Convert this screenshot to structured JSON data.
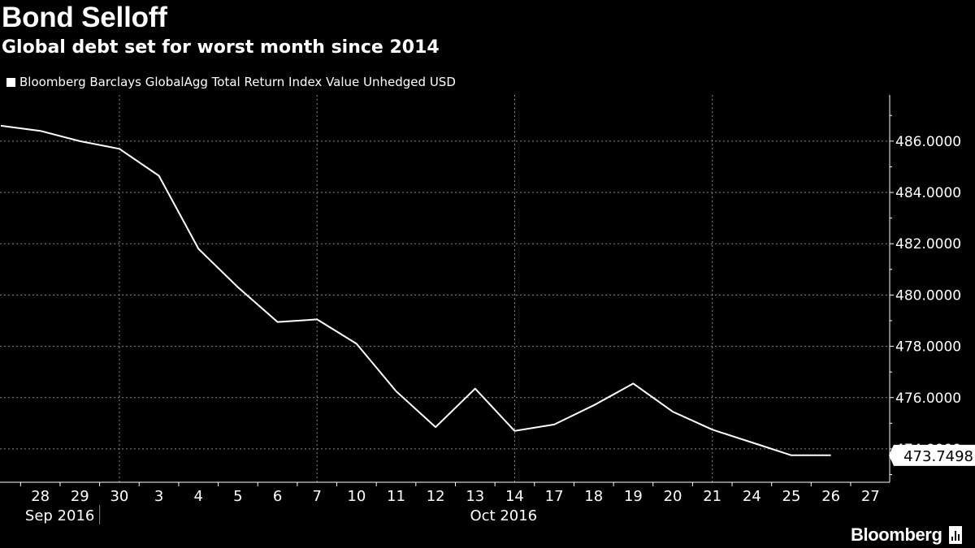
{
  "header": {
    "title": "Bond Selloff",
    "subtitle": "Global debt set for worst month since 2014"
  },
  "legend": {
    "label": "Bloomberg Barclays GlobalAgg Total Return Index Value Unhedged USD"
  },
  "brand": {
    "name": "Bloomberg",
    "icon": "bloomberg-terminal-icon"
  },
  "colors": {
    "background": "#000000",
    "line": "#ffffff",
    "grid": "#888888"
  },
  "chart_data": {
    "type": "line",
    "title": "Bond Selloff",
    "subtitle": "Global debt set for worst month since 2014",
    "xlabel": "",
    "ylabel": "",
    "x_tick_labels": [
      "28",
      "29",
      "30",
      "3",
      "4",
      "5",
      "6",
      "7",
      "10",
      "11",
      "12",
      "13",
      "14",
      "17",
      "18",
      "19",
      "20",
      "21",
      "24",
      "25",
      "26",
      "27"
    ],
    "x_month_labels": [
      "Sep 2016",
      "Oct 2016"
    ],
    "x": [
      "2016-09-27",
      "2016-09-28",
      "2016-09-29",
      "2016-09-30",
      "2016-10-03",
      "2016-10-04",
      "2016-10-05",
      "2016-10-06",
      "2016-10-07",
      "2016-10-10",
      "2016-10-11",
      "2016-10-12",
      "2016-10-13",
      "2016-10-14",
      "2016-10-17",
      "2016-10-18",
      "2016-10-19",
      "2016-10-20",
      "2016-10-21",
      "2016-10-24",
      "2016-10-25",
      "2016-10-26"
    ],
    "series": [
      {
        "name": "Bloomberg Barclays GlobalAgg Total Return Index Value Unhedged USD",
        "values": [
          486.6,
          486.4,
          486.0,
          485.7,
          484.65,
          481.8,
          480.3,
          478.95,
          479.05,
          478.1,
          476.25,
          474.85,
          476.35,
          474.7,
          474.95,
          475.7,
          476.55,
          475.45,
          474.75,
          474.25,
          473.7498,
          473.7498
        ]
      }
    ],
    "y_tick_labels": [
      "474.0000",
      "476.0000",
      "478.0000",
      "480.0000",
      "482.0000",
      "484.0000",
      "486.0000"
    ],
    "ylim": [
      472.7,
      487.8
    ],
    "last_value_label": "473.7498",
    "grid": true,
    "legend": "top-left"
  }
}
